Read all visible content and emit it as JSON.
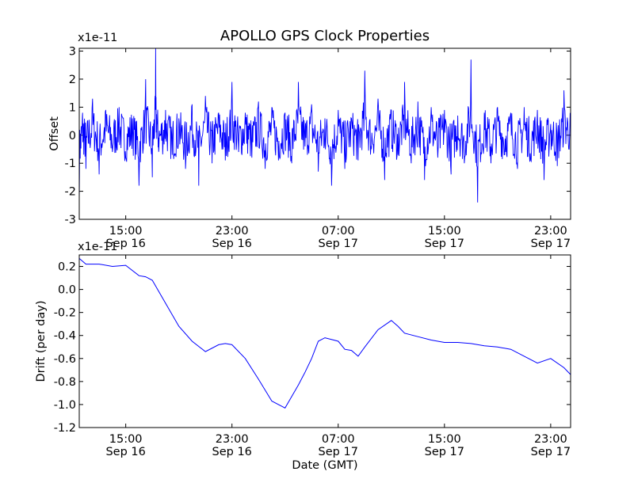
{
  "chart_data": [
    {
      "type": "line",
      "title": "APOLLO GPS Clock Properties",
      "ylabel": "Offset",
      "y_multiplier_label": "x1e-11",
      "ylim": [
        -3,
        3.1
      ],
      "yticks": [
        -3,
        -2,
        -1,
        0,
        1,
        2,
        3
      ],
      "ytick_labels": [
        "-3",
        "-2",
        "-1",
        "0",
        "1",
        "2",
        "3"
      ],
      "xlim": [
        "2009-09-16 11:30",
        "2009-09-18 00:30"
      ],
      "xticks": [
        {
          "t": "2009-09-16 15:00",
          "time": "15:00",
          "date": "Sep 16"
        },
        {
          "t": "2009-09-16 23:00",
          "time": "23:00",
          "date": "Sep 16"
        },
        {
          "t": "2009-09-17 07:00",
          "time": "07:00",
          "date": "Sep 17"
        },
        {
          "t": "2009-09-17 15:00",
          "time": "15:00",
          "date": "Sep 17"
        },
        {
          "t": "2009-09-17 23:00",
          "time": "23:00",
          "date": "Sep 17"
        }
      ],
      "series": [
        {
          "color": "#0000ff",
          "x": [
            "2009-09-16 11:30",
            "2009-09-16 11:45",
            "2009-09-16 12:00",
            "2009-09-16 12:30",
            "2009-09-16 13:00",
            "2009-09-16 13:30",
            "2009-09-16 14:00",
            "2009-09-16 14:30",
            "2009-09-16 15:00",
            "2009-09-16 15:30",
            "2009-09-16 16:00",
            "2009-09-16 16:30",
            "2009-09-16 17:00",
            "2009-09-16 17:15",
            "2009-09-16 17:30",
            "2009-09-16 18:00",
            "2009-09-16 18:30",
            "2009-09-16 19:00",
            "2009-09-16 19:30",
            "2009-09-16 20:00",
            "2009-09-16 20:30",
            "2009-09-16 21:00",
            "2009-09-16 21:30",
            "2009-09-16 22:00",
            "2009-09-16 22:30",
            "2009-09-16 23:00",
            "2009-09-16 23:30",
            "2009-09-17 00:00",
            "2009-09-17 00:30",
            "2009-09-17 01:00",
            "2009-09-17 01:30",
            "2009-09-17 02:00",
            "2009-09-17 02:30",
            "2009-09-17 03:00",
            "2009-09-17 03:30",
            "2009-09-17 04:00",
            "2009-09-17 04:30",
            "2009-09-17 05:00",
            "2009-09-17 05:30",
            "2009-09-17 06:00",
            "2009-09-17 06:30",
            "2009-09-17 07:00",
            "2009-09-17 07:30",
            "2009-09-17 08:00",
            "2009-09-17 08:30",
            "2009-09-17 09:00",
            "2009-09-17 09:30",
            "2009-09-17 10:00",
            "2009-09-17 10:30",
            "2009-09-17 11:00",
            "2009-09-17 11:30",
            "2009-09-17 12:00",
            "2009-09-17 12:30",
            "2009-09-17 13:00",
            "2009-09-17 13:30",
            "2009-09-17 14:00",
            "2009-09-17 14:30",
            "2009-09-17 15:00",
            "2009-09-17 15:30",
            "2009-09-17 16:00",
            "2009-09-17 16:30",
            "2009-09-17 17:00",
            "2009-09-17 17:30",
            "2009-09-17 18:00",
            "2009-09-17 18:30",
            "2009-09-17 19:00",
            "2009-09-17 19:30",
            "2009-09-17 20:00",
            "2009-09-17 20:30",
            "2009-09-17 21:00",
            "2009-09-17 21:30",
            "2009-09-17 22:00",
            "2009-09-17 22:30",
            "2009-09-17 23:00",
            "2009-09-17 23:30",
            "2009-09-18 00:00",
            "2009-09-18 00:30"
          ],
          "y": [
            -2.4,
            0.8,
            -1.2,
            1.3,
            -1.4,
            0.9,
            -0.6,
            1.0,
            -0.8,
            0.6,
            -1.8,
            2.0,
            -1.5,
            3.1,
            -0.5,
            0.9,
            -0.7,
            0.6,
            -1.2,
            1.1,
            -1.8,
            1.4,
            -1.0,
            0.8,
            -0.9,
            1.9,
            -0.6,
            0.8,
            -0.8,
            1.2,
            -1.2,
            1.0,
            -0.9,
            0.8,
            -1.0,
            1.9,
            -0.4,
            1.1,
            -1.3,
            0.6,
            -1.8,
            0.9,
            -1.2,
            0.6,
            -0.9,
            2.3,
            -0.5,
            1.3,
            -1.6,
            0.9,
            -0.7,
            1.9,
            -1.0,
            1.2,
            -1.6,
            1.0,
            -0.8,
            0.9,
            -1.4,
            0.7,
            -1.0,
            2.7,
            -2.4,
            0.8,
            -1.0,
            1.0,
            -0.7,
            0.8,
            -1.2,
            1.0,
            -0.9,
            0.9,
            -1.6,
            0.4,
            -1.1,
            1.6,
            0.3
          ]
        }
      ]
    },
    {
      "type": "line",
      "xlabel": "Date (GMT)",
      "ylabel": "Drift (per day)",
      "y_multiplier_label": "x1e-11",
      "ylim": [
        -1.2,
        0.3
      ],
      "yticks": [
        -1.2,
        -1.0,
        -0.8,
        -0.6,
        -0.4,
        -0.2,
        0.0,
        0.2
      ],
      "ytick_labels": [
        "-1.2",
        "-1.0",
        "-0.8",
        "-0.6",
        "-0.4",
        "-0.2",
        "0.0",
        "0.2"
      ],
      "xlim": [
        "2009-09-16 11:30",
        "2009-09-18 00:30"
      ],
      "xticks": [
        {
          "t": "2009-09-16 15:00",
          "time": "15:00",
          "date": "Sep 16"
        },
        {
          "t": "2009-09-16 23:00",
          "time": "23:00",
          "date": "Sep 16"
        },
        {
          "t": "2009-09-17 07:00",
          "time": "07:00",
          "date": "Sep 17"
        },
        {
          "t": "2009-09-17 15:00",
          "time": "15:00",
          "date": "Sep 17"
        },
        {
          "t": "2009-09-17 23:00",
          "time": "23:00",
          "date": "Sep 17"
        }
      ],
      "series": [
        {
          "color": "#0000ff",
          "x": [
            "2009-09-16 11:30",
            "2009-09-16 12:00",
            "2009-09-16 13:00",
            "2009-09-16 14:00",
            "2009-09-16 15:00",
            "2009-09-16 16:00",
            "2009-09-16 16:30",
            "2009-09-16 17:00",
            "2009-09-16 18:00",
            "2009-09-16 19:00",
            "2009-09-16 20:00",
            "2009-09-16 21:00",
            "2009-09-16 22:00",
            "2009-09-16 22:30",
            "2009-09-16 23:00",
            "2009-09-17 00:00",
            "2009-09-17 01:00",
            "2009-09-17 02:00",
            "2009-09-17 03:00",
            "2009-09-17 04:00",
            "2009-09-17 04:30",
            "2009-09-17 05:00",
            "2009-09-17 05:30",
            "2009-09-17 06:00",
            "2009-09-17 07:00",
            "2009-09-17 07:30",
            "2009-09-17 08:00",
            "2009-09-17 08:30",
            "2009-09-17 09:00",
            "2009-09-17 10:00",
            "2009-09-17 11:00",
            "2009-09-17 11:30",
            "2009-09-17 12:00",
            "2009-09-17 13:00",
            "2009-09-17 14:00",
            "2009-09-17 15:00",
            "2009-09-17 16:00",
            "2009-09-17 17:00",
            "2009-09-17 18:00",
            "2009-09-17 19:00",
            "2009-09-17 20:00",
            "2009-09-17 21:00",
            "2009-09-17 22:00",
            "2009-09-17 23:00",
            "2009-09-18 00:00",
            "2009-09-18 00:30"
          ],
          "y": [
            0.27,
            0.22,
            0.22,
            0.2,
            0.21,
            0.12,
            0.11,
            0.08,
            -0.12,
            -0.32,
            -0.45,
            -0.54,
            -0.48,
            -0.47,
            -0.48,
            -0.6,
            -0.78,
            -0.97,
            -1.03,
            -0.83,
            -0.72,
            -0.6,
            -0.45,
            -0.42,
            -0.45,
            -0.52,
            -0.53,
            -0.58,
            -0.5,
            -0.35,
            -0.27,
            -0.32,
            -0.38,
            -0.41,
            -0.44,
            -0.46,
            -0.46,
            -0.47,
            -0.49,
            -0.5,
            -0.52,
            -0.58,
            -0.64,
            -0.6,
            -0.68,
            -0.74
          ]
        }
      ]
    }
  ]
}
